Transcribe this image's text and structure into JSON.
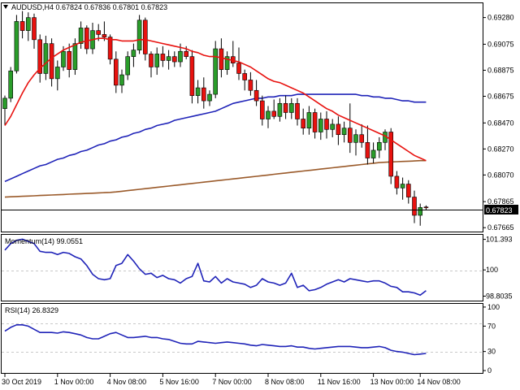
{
  "header": {
    "symbol": "AUDUSD,H4",
    "ohlc": "0.67824 0.67836 0.67801 0.67823"
  },
  "colors": {
    "ma_fast": "#e8120f",
    "ma_mid": "#1f23b8",
    "ma_slow": "#9a5a2a",
    "indicator": "#1f23b8",
    "bull": "#2a9d2a",
    "bear": "#e8120f",
    "grid": "#c8c8c8"
  },
  "chart_data": [
    {
      "type": "candlestick",
      "title": "AUDUSD,H4",
      "ylim": [
        0.67635,
        0.6939
      ],
      "y_ticks": [
        "0.69280",
        "0.69075",
        "0.68875",
        "0.68675",
        "0.68470",
        "0.68270",
        "0.68070",
        "0.67865",
        "0.67665"
      ],
      "current_price": "0.67823",
      "x_ticks": [
        "30 Oct 2019",
        "1 Nov 00:00",
        "4 Nov 08:00",
        "5 Nov 16:00",
        "7 Nov 00:00",
        "8 Nov 08:00",
        "11 Nov 16:00",
        "13 Nov 00:00",
        "14 Nov 08:00"
      ],
      "candles": [
        {
          "o": 0.6858,
          "h": 0.6868,
          "l": 0.6845,
          "c": 0.6866
        },
        {
          "o": 0.6866,
          "h": 0.689,
          "l": 0.6863,
          "c": 0.6887
        },
        {
          "o": 0.6887,
          "h": 0.693,
          "l": 0.6885,
          "c": 0.6925
        },
        {
          "o": 0.6925,
          "h": 0.6933,
          "l": 0.6912,
          "c": 0.6918
        },
        {
          "o": 0.6918,
          "h": 0.6932,
          "l": 0.691,
          "c": 0.6928
        },
        {
          "o": 0.6928,
          "h": 0.6931,
          "l": 0.6904,
          "c": 0.6911
        },
        {
          "o": 0.6911,
          "h": 0.6915,
          "l": 0.6878,
          "c": 0.6885
        },
        {
          "o": 0.6885,
          "h": 0.6914,
          "l": 0.688,
          "c": 0.6908
        },
        {
          "o": 0.6908,
          "h": 0.6912,
          "l": 0.6875,
          "c": 0.6881
        },
        {
          "o": 0.6881,
          "h": 0.6895,
          "l": 0.6872,
          "c": 0.689
        },
        {
          "o": 0.689,
          "h": 0.6906,
          "l": 0.6887,
          "c": 0.6902
        },
        {
          "o": 0.6902,
          "h": 0.6908,
          "l": 0.6882,
          "c": 0.6888
        },
        {
          "o": 0.6888,
          "h": 0.6912,
          "l": 0.6884,
          "c": 0.6908
        },
        {
          "o": 0.6908,
          "h": 0.6925,
          "l": 0.6904,
          "c": 0.692
        },
        {
          "o": 0.692,
          "h": 0.6922,
          "l": 0.69,
          "c": 0.6904
        },
        {
          "o": 0.6904,
          "h": 0.6924,
          "l": 0.69,
          "c": 0.6918
        },
        {
          "o": 0.6918,
          "h": 0.6923,
          "l": 0.691,
          "c": 0.6915
        },
        {
          "o": 0.6915,
          "h": 0.6925,
          "l": 0.691,
          "c": 0.6913
        },
        {
          "o": 0.6913,
          "h": 0.6915,
          "l": 0.6892,
          "c": 0.6896
        },
        {
          "o": 0.6896,
          "h": 0.6902,
          "l": 0.687,
          "c": 0.6876
        },
        {
          "o": 0.6876,
          "h": 0.6888,
          "l": 0.687,
          "c": 0.6884
        },
        {
          "o": 0.6884,
          "h": 0.6902,
          "l": 0.688,
          "c": 0.6898
        },
        {
          "o": 0.6898,
          "h": 0.6908,
          "l": 0.689,
          "c": 0.6903
        },
        {
          "o": 0.6903,
          "h": 0.693,
          "l": 0.69,
          "c": 0.6926
        },
        {
          "o": 0.6926,
          "h": 0.6928,
          "l": 0.6895,
          "c": 0.69
        },
        {
          "o": 0.69,
          "h": 0.6902,
          "l": 0.6882,
          "c": 0.689
        },
        {
          "o": 0.689,
          "h": 0.6905,
          "l": 0.6884,
          "c": 0.69
        },
        {
          "o": 0.69,
          "h": 0.6906,
          "l": 0.689,
          "c": 0.6895
        },
        {
          "o": 0.6895,
          "h": 0.6903,
          "l": 0.6888,
          "c": 0.6898
        },
        {
          "o": 0.6898,
          "h": 0.6902,
          "l": 0.689,
          "c": 0.6894
        },
        {
          "o": 0.6894,
          "h": 0.6908,
          "l": 0.689,
          "c": 0.6902
        },
        {
          "o": 0.6902,
          "h": 0.6906,
          "l": 0.6896,
          "c": 0.6898
        },
        {
          "o": 0.6898,
          "h": 0.6903,
          "l": 0.6862,
          "c": 0.6868
        },
        {
          "o": 0.6868,
          "h": 0.688,
          "l": 0.6862,
          "c": 0.6874
        },
        {
          "o": 0.6874,
          "h": 0.6882,
          "l": 0.6858,
          "c": 0.6864
        },
        {
          "o": 0.6864,
          "h": 0.6872,
          "l": 0.686,
          "c": 0.6869
        },
        {
          "o": 0.6869,
          "h": 0.691,
          "l": 0.6866,
          "c": 0.6904
        },
        {
          "o": 0.6904,
          "h": 0.6912,
          "l": 0.6882,
          "c": 0.6888
        },
        {
          "o": 0.6888,
          "h": 0.6902,
          "l": 0.6884,
          "c": 0.6898
        },
        {
          "o": 0.6898,
          "h": 0.691,
          "l": 0.689,
          "c": 0.6893
        },
        {
          "o": 0.6893,
          "h": 0.6905,
          "l": 0.688,
          "c": 0.6885
        },
        {
          "o": 0.6885,
          "h": 0.6888,
          "l": 0.6872,
          "c": 0.688
        },
        {
          "o": 0.688,
          "h": 0.6886,
          "l": 0.6868,
          "c": 0.6872
        },
        {
          "o": 0.6872,
          "h": 0.688,
          "l": 0.686,
          "c": 0.6864
        },
        {
          "o": 0.6864,
          "h": 0.6868,
          "l": 0.6845,
          "c": 0.685
        },
        {
          "o": 0.685,
          "h": 0.686,
          "l": 0.6843,
          "c": 0.6856
        },
        {
          "o": 0.6856,
          "h": 0.6865,
          "l": 0.685,
          "c": 0.6852
        },
        {
          "o": 0.6852,
          "h": 0.6866,
          "l": 0.6848,
          "c": 0.6862
        },
        {
          "o": 0.6862,
          "h": 0.6868,
          "l": 0.685,
          "c": 0.6855
        },
        {
          "o": 0.6855,
          "h": 0.6866,
          "l": 0.685,
          "c": 0.6862
        },
        {
          "o": 0.6862,
          "h": 0.6866,
          "l": 0.6845,
          "c": 0.685
        },
        {
          "o": 0.685,
          "h": 0.6858,
          "l": 0.6838,
          "c": 0.6843
        },
        {
          "o": 0.6843,
          "h": 0.686,
          "l": 0.6838,
          "c": 0.6855
        },
        {
          "o": 0.6855,
          "h": 0.6858,
          "l": 0.6835,
          "c": 0.684
        },
        {
          "o": 0.684,
          "h": 0.6855,
          "l": 0.6834,
          "c": 0.685
        },
        {
          "o": 0.685,
          "h": 0.6856,
          "l": 0.6835,
          "c": 0.6842
        },
        {
          "o": 0.6842,
          "h": 0.685,
          "l": 0.6836,
          "c": 0.6846
        },
        {
          "o": 0.6846,
          "h": 0.6852,
          "l": 0.683,
          "c": 0.6838
        },
        {
          "o": 0.6838,
          "h": 0.6848,
          "l": 0.6832,
          "c": 0.6843
        },
        {
          "o": 0.6843,
          "h": 0.6862,
          "l": 0.6824,
          "c": 0.6832
        },
        {
          "o": 0.6832,
          "h": 0.6842,
          "l": 0.6822,
          "c": 0.6838
        },
        {
          "o": 0.6838,
          "h": 0.6846,
          "l": 0.6828,
          "c": 0.6832
        },
        {
          "o": 0.6832,
          "h": 0.6845,
          "l": 0.6815,
          "c": 0.682
        },
        {
          "o": 0.682,
          "h": 0.6832,
          "l": 0.6816,
          "c": 0.6826
        },
        {
          "o": 0.6826,
          "h": 0.6836,
          "l": 0.682,
          "c": 0.6832
        },
        {
          "o": 0.6832,
          "h": 0.6842,
          "l": 0.6826,
          "c": 0.684
        },
        {
          "o": 0.684,
          "h": 0.6843,
          "l": 0.68,
          "c": 0.6806
        },
        {
          "o": 0.6806,
          "h": 0.681,
          "l": 0.6792,
          "c": 0.6797
        },
        {
          "o": 0.6797,
          "h": 0.6805,
          "l": 0.6788,
          "c": 0.68
        },
        {
          "o": 0.68,
          "h": 0.6803,
          "l": 0.6785,
          "c": 0.679
        },
        {
          "o": 0.679,
          "h": 0.6795,
          "l": 0.677,
          "c": 0.6776
        },
        {
          "o": 0.6776,
          "h": 0.6785,
          "l": 0.6768,
          "c": 0.6782
        },
        {
          "o": 0.67824,
          "h": 0.67836,
          "l": 0.67801,
          "c": 0.67823
        }
      ],
      "moving_averages": [
        {
          "role": "fast",
          "values": [
            0.6845,
            0.6852,
            0.6861,
            0.687,
            0.6878,
            0.6884,
            0.6889,
            0.6893,
            0.6897,
            0.69,
            0.6903,
            0.6905,
            0.6907,
            0.6909,
            0.691,
            0.6911,
            0.6912,
            0.6912,
            0.6911,
            0.6911,
            0.691,
            0.691,
            0.691,
            0.6911,
            0.6911,
            0.691,
            0.6909,
            0.6908,
            0.6907,
            0.6906,
            0.6905,
            0.6904,
            0.6902,
            0.6901,
            0.6899,
            0.6898,
            0.6898,
            0.6897,
            0.6896,
            0.6895,
            0.6894,
            0.6892,
            0.689,
            0.6887,
            0.6884,
            0.6881,
            0.6879,
            0.6878,
            0.6876,
            0.6874,
            0.6872,
            0.687,
            0.6867,
            0.6864,
            0.6861,
            0.6858,
            0.6856,
            0.6853,
            0.6851,
            0.6849,
            0.6847,
            0.6845,
            0.6843,
            0.6841,
            0.6839,
            0.6837,
            0.6834,
            0.6831,
            0.6828,
            0.6825,
            0.6822,
            0.682,
            0.6818
          ]
        },
        {
          "role": "mid",
          "values": [
            0.6802,
            0.6804,
            0.6806,
            0.6808,
            0.681,
            0.6812,
            0.6814,
            0.6815,
            0.6817,
            0.6819,
            0.682,
            0.6822,
            0.6823,
            0.6825,
            0.6826,
            0.6828,
            0.683,
            0.6831,
            0.6833,
            0.6834,
            0.6836,
            0.6837,
            0.6839,
            0.684,
            0.6842,
            0.6843,
            0.6845,
            0.6846,
            0.6847,
            0.6849,
            0.685,
            0.6851,
            0.6852,
            0.6853,
            0.6854,
            0.6855,
            0.6856,
            0.6858,
            0.686,
            0.6862,
            0.6863,
            0.6864,
            0.6865,
            0.6866,
            0.6866,
            0.6867,
            0.6867,
            0.6868,
            0.6868,
            0.6868,
            0.6869,
            0.6869,
            0.6869,
            0.6869,
            0.6869,
            0.6869,
            0.6869,
            0.6869,
            0.6869,
            0.6869,
            0.6869,
            0.6868,
            0.6868,
            0.6867,
            0.6867,
            0.6866,
            0.6866,
            0.6865,
            0.6864,
            0.6864,
            0.6863,
            0.6863,
            0.6863
          ]
        },
        {
          "role": "slow",
          "values": [
            0.679,
            0.67902,
            0.67904,
            0.67906,
            0.67908,
            0.6791,
            0.67912,
            0.67914,
            0.67916,
            0.67918,
            0.6792,
            0.67922,
            0.67924,
            0.67926,
            0.67928,
            0.6793,
            0.67932,
            0.67934,
            0.67936,
            0.6794,
            0.67945,
            0.6795,
            0.67955,
            0.6796,
            0.67965,
            0.6797,
            0.67975,
            0.6798,
            0.67985,
            0.6799,
            0.67995,
            0.68,
            0.68005,
            0.6801,
            0.68015,
            0.6802,
            0.68025,
            0.6803,
            0.68035,
            0.6804,
            0.68045,
            0.6805,
            0.68055,
            0.6806,
            0.68065,
            0.6807,
            0.68075,
            0.6808,
            0.68085,
            0.6809,
            0.68095,
            0.681,
            0.68105,
            0.6811,
            0.68115,
            0.6812,
            0.68125,
            0.6813,
            0.68135,
            0.6814,
            0.68145,
            0.6815,
            0.68155,
            0.6816,
            0.68165,
            0.68168,
            0.6817,
            0.68172,
            0.68174,
            0.68176,
            0.68178,
            0.6818,
            0.6818
          ]
        }
      ]
    },
    {
      "type": "line",
      "title": "Momentum(14) 99.0551",
      "ylim": [
        98.6,
        101.6
      ],
      "y_ticks": [
        "101.393",
        "100",
        "98.8035"
      ],
      "series": [
        {
          "values": [
            100.9,
            101.2,
            101.35,
            101.4,
            101.3,
            101.2,
            100.85,
            100.8,
            100.8,
            100.7,
            100.8,
            100.75,
            100.6,
            100.5,
            100.2,
            99.8,
            99.6,
            99.55,
            99.6,
            100.2,
            100.3,
            100.7,
            100.4,
            100.05,
            99.8,
            99.85,
            99.65,
            99.75,
            99.6,
            99.55,
            99.4,
            99.6,
            99.7,
            100.3,
            99.5,
            99.45,
            99.7,
            99.4,
            99.6,
            99.45,
            99.4,
            99.35,
            99.2,
            99.3,
            99.6,
            99.45,
            99.4,
            99.3,
            99.4,
            99.85,
            99.2,
            99.3,
            99.05,
            99.1,
            99.2,
            99.35,
            99.45,
            99.55,
            99.45,
            99.6,
            99.55,
            99.5,
            99.45,
            99.5,
            99.5,
            99.4,
            99.25,
            99.2,
            99.0,
            99.0,
            98.95,
            98.85,
            99.05
          ]
        }
      ]
    },
    {
      "type": "line",
      "title": "RSI(14) 26.8329",
      "ylim": [
        -5,
        105
      ],
      "y_ticks": [
        "100",
        "70",
        "30",
        "0"
      ],
      "series": [
        {
          "values": [
            62,
            68,
            72,
            72,
            70,
            65,
            60,
            60,
            60,
            59,
            61,
            60,
            58,
            56,
            52,
            50,
            50,
            54,
            58,
            60,
            56,
            52,
            52,
            53,
            54,
            52,
            52,
            50,
            49,
            46,
            43,
            42,
            42,
            46,
            45,
            44,
            43,
            44,
            45,
            44,
            43,
            42,
            40,
            39,
            41,
            40,
            39,
            38,
            38,
            39,
            37,
            37,
            35,
            34,
            35,
            36,
            37,
            38,
            38,
            38,
            37,
            36,
            36,
            37,
            38,
            36,
            32,
            30,
            29,
            27,
            25,
            26,
            27
          ]
        }
      ]
    }
  ]
}
